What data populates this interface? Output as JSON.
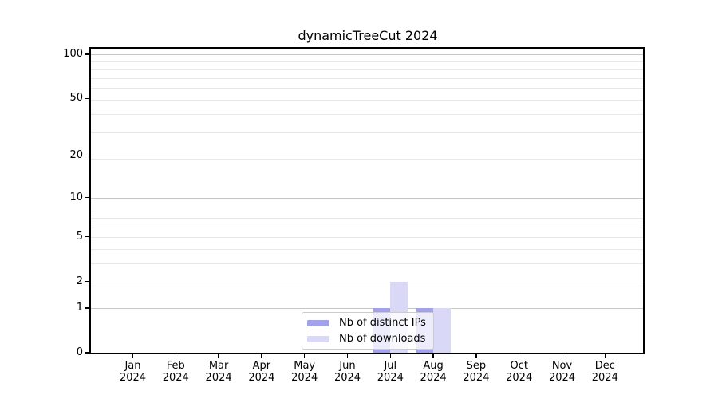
{
  "title": "dynamicTreeCut 2024",
  "chart_data": {
    "type": "bar",
    "title": "dynamicTreeCut 2024",
    "categories": [
      {
        "month": "Jan",
        "year": "2024"
      },
      {
        "month": "Feb",
        "year": "2024"
      },
      {
        "month": "Mar",
        "year": "2024"
      },
      {
        "month": "Apr",
        "year": "2024"
      },
      {
        "month": "May",
        "year": "2024"
      },
      {
        "month": "Jun",
        "year": "2024"
      },
      {
        "month": "Jul",
        "year": "2024"
      },
      {
        "month": "Aug",
        "year": "2024"
      },
      {
        "month": "Sep",
        "year": "2024"
      },
      {
        "month": "Oct",
        "year": "2024"
      },
      {
        "month": "Nov",
        "year": "2024"
      },
      {
        "month": "Dec",
        "year": "2024"
      }
    ],
    "series": [
      {
        "name": "Nb of distinct IPs",
        "color": "#a1a1ee",
        "values": [
          0,
          0,
          0,
          0,
          0,
          0,
          1,
          1,
          0,
          0,
          0,
          0
        ]
      },
      {
        "name": "Nb of downloads",
        "color": "#d9d9f7",
        "values": [
          0,
          0,
          0,
          0,
          0,
          0,
          2,
          1,
          0,
          0,
          0,
          0
        ]
      }
    ],
    "xlabel": "",
    "ylabel": "",
    "y_scale": "log10(1+y)",
    "ylim": [
      0,
      112
    ],
    "y_tick_values": [
      0,
      1,
      2,
      5,
      10,
      20,
      50,
      100
    ],
    "y_tick_labels": [
      "0",
      "1",
      "2",
      "5",
      "10",
      "20",
      "50",
      "100"
    ],
    "major_grid_values": [
      1,
      10,
      100
    ],
    "minor_grid_values": [
      2,
      3,
      4,
      5,
      6,
      7,
      8,
      19,
      29,
      39,
      49,
      59,
      69,
      79,
      89
    ],
    "grid": true,
    "legend_position": "bottom-center"
  },
  "legend": {
    "items": [
      {
        "label": "Nb of distinct IPs",
        "color": "#a1a1ee"
      },
      {
        "label": "Nb of downloads",
        "color": "#d9d9f7"
      }
    ]
  },
  "colors": {
    "bar_distinct_ips": "#a1a1ee",
    "bar_downloads": "#d9d9f7",
    "grid_major": "#c6c6c6",
    "grid_minor": "#e8e8e8",
    "axis": "#000000",
    "background": "#ffffff"
  }
}
